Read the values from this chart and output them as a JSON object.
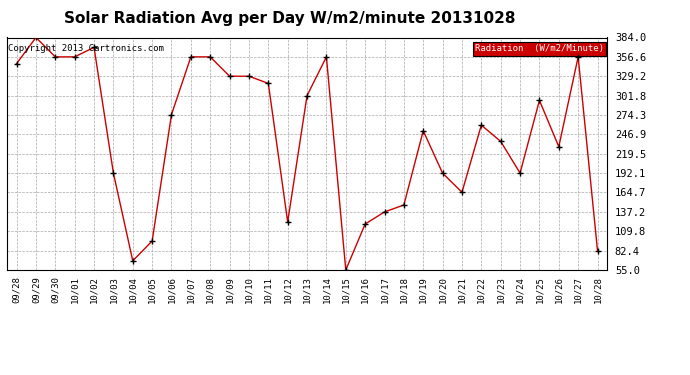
{
  "title": "Solar Radiation Avg per Day W/m2/minute 20131028",
  "copyright": "Copyright 2013 Cartronics.com",
  "legend_label": "Radiation  (W/m2/Minute)",
  "x_labels": [
    "09/28",
    "09/29",
    "09/30",
    "10/01",
    "10/02",
    "10/03",
    "10/04",
    "10/05",
    "10/06",
    "10/07",
    "10/08",
    "10/09",
    "10/10",
    "10/11",
    "10/12",
    "10/13",
    "10/14",
    "10/15",
    "10/16",
    "10/17",
    "10/18",
    "10/19",
    "10/20",
    "10/21",
    "10/22",
    "10/23",
    "10/24",
    "10/25",
    "10/26",
    "10/27",
    "10/28"
  ],
  "y_values": [
    347.0,
    384.0,
    356.6,
    356.6,
    370.0,
    192.1,
    68.0,
    96.0,
    275.0,
    356.6,
    356.6,
    329.2,
    329.2,
    319.0,
    123.0,
    301.8,
    356.6,
    55.0,
    120.0,
    137.2,
    147.0,
    252.0,
    192.0,
    165.0,
    260.0,
    237.0,
    192.1,
    295.0,
    229.5,
    356.6,
    82.4
  ],
  "ylim": [
    55.0,
    384.0
  ],
  "yticks": [
    55.0,
    82.4,
    109.8,
    137.2,
    164.7,
    192.1,
    219.5,
    246.9,
    274.3,
    301.8,
    329.2,
    356.6,
    384.0
  ],
  "line_color": "#cc0000",
  "marker_color": "#000000",
  "bg_color": "#ffffff",
  "plot_bg_color": "#ffffff",
  "grid_color": "#aaaaaa",
  "title_fontsize": 11,
  "copyright_fontsize": 6.5,
  "legend_bg_color": "#cc0000",
  "legend_text_color": "#ffffff",
  "tick_fontsize": 7.5,
  "xtick_fontsize": 6.5
}
